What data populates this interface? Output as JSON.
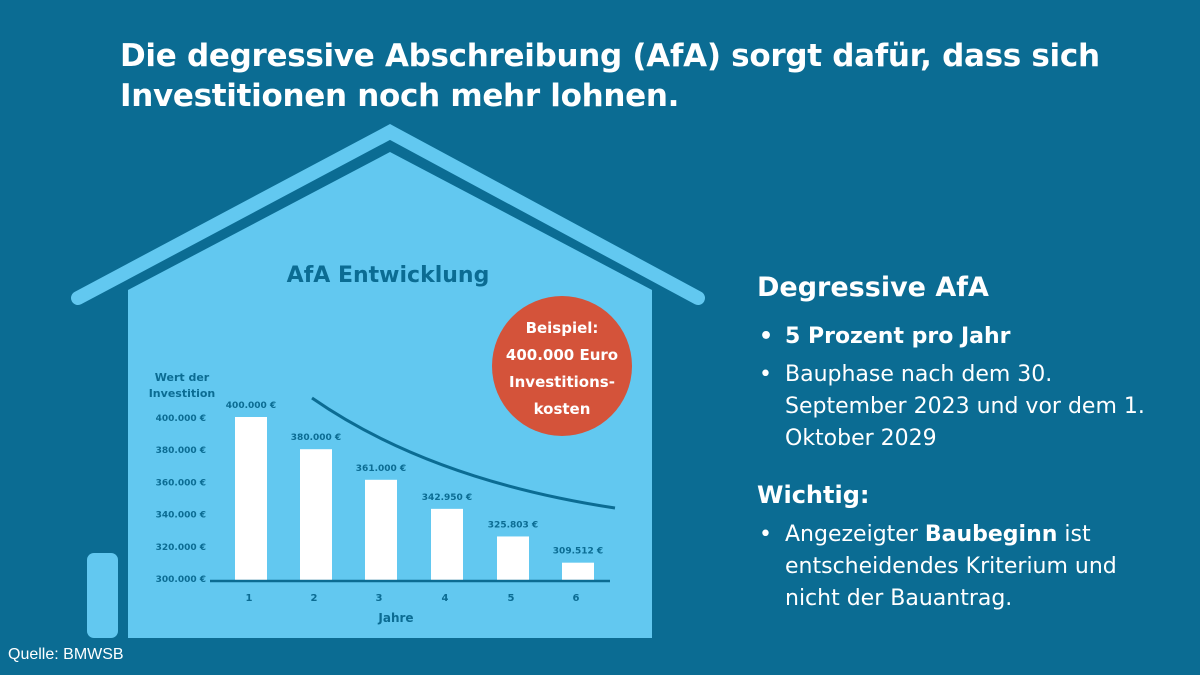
{
  "title_lines": [
    "Die degressive Abschreibung (AfA) sorgt dafür, dass sich",
    "Investitionen noch mehr lohnen."
  ],
  "colors": {
    "background": "#0b6c93",
    "house": "#62c8f0",
    "bar": "#ffffff",
    "axis": "#0b6c93",
    "badge": "#d4533a",
    "text_dark": "#0b6c93"
  },
  "badge": {
    "lines": [
      "Beispiel:",
      "400.000 Euro",
      "Investitions-",
      "kosten"
    ]
  },
  "chart_data": {
    "type": "bar",
    "title": "AfA Entwicklung",
    "ylabel_lines": [
      "Wert der",
      "Investition"
    ],
    "xlabel": "Jahre",
    "categories": [
      "1",
      "2",
      "3",
      "4",
      "5",
      "6"
    ],
    "values": [
      400000,
      380000,
      361000,
      342950,
      325803,
      309512
    ],
    "data_labels": [
      "400.000 €",
      "380.000  €",
      "361.000 €",
      "342.950 €",
      "325.803 €",
      "309.512 €"
    ],
    "yticks": [
      300000,
      320000,
      340000,
      360000,
      380000,
      400000
    ],
    "ytick_labels": [
      "300.000 €",
      "320.000 €",
      "340.000 €",
      "360.000 €",
      "380.000 €",
      "400.000 €"
    ],
    "ylim": [
      300000,
      400000
    ],
    "grid": false,
    "trend_curve": "decreasing"
  },
  "info": {
    "heading": "Degressive AfA",
    "bullets": [
      "5 Prozent pro Jahr",
      "Bauphase nach dem 30. September 2023 und vor dem 1. Oktober 2029"
    ],
    "important_heading": "Wichtig:",
    "important_pre": "Angezeigter ",
    "important_bold": "Baubeginn",
    "important_post": " ist entscheidendes Kriterium und nicht der Bauantrag."
  },
  "source": "Quelle: BMWSB"
}
